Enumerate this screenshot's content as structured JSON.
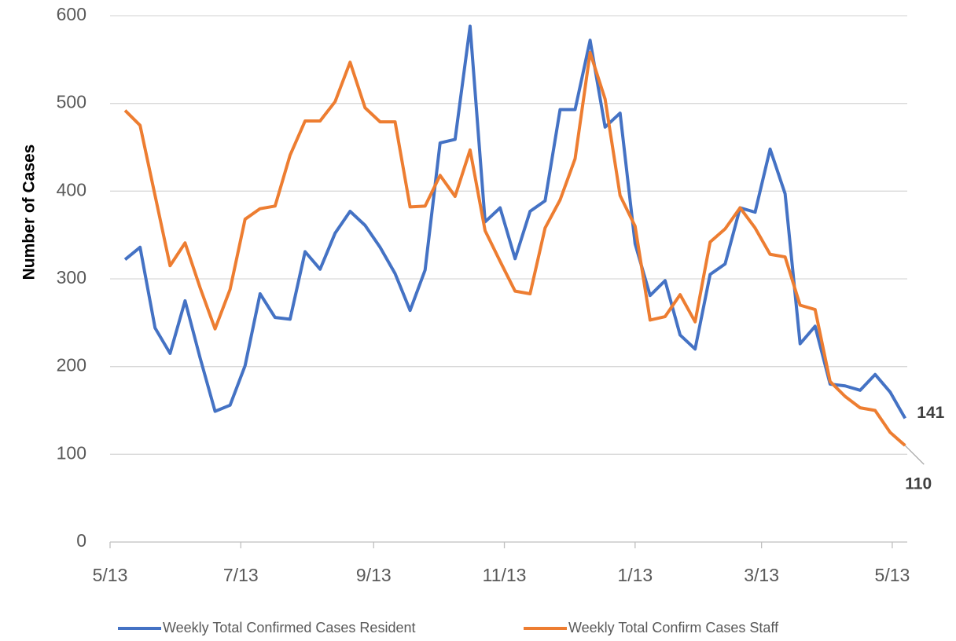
{
  "chart_data": {
    "type": "line",
    "y_axis_label": "Number of Cases",
    "x": [
      7,
      14,
      21,
      28,
      35,
      42,
      49,
      56,
      63,
      70,
      77,
      84,
      91,
      98,
      105,
      112,
      119,
      126,
      133,
      140,
      147,
      154,
      161,
      168,
      175,
      182,
      189,
      196,
      203,
      210,
      217,
      224,
      231,
      238,
      245,
      252,
      259,
      266,
      273,
      280,
      287,
      294,
      301,
      308,
      315,
      322,
      329,
      336,
      343,
      350,
      357,
      364,
      371
    ],
    "series": [
      {
        "name": "Weekly Total Confirmed Cases Resident",
        "color": "#4472c4",
        "values": [
          322,
          336,
          244,
          215,
          275,
          210,
          149,
          156,
          201,
          283,
          256,
          254,
          331,
          311,
          352,
          377,
          361,
          336,
          306,
          264,
          310,
          455,
          459,
          588,
          365,
          381,
          323,
          377,
          389,
          493,
          493,
          572,
          473,
          489,
          340,
          281,
          298,
          236,
          220,
          305,
          317,
          381,
          376,
          448,
          397,
          226,
          246,
          180,
          178,
          173,
          191,
          171,
          141
        ]
      },
      {
        "name": "Weekly Total Confirm Cases Staff",
        "color": "#ed7d31",
        "values": [
          492,
          475,
          395,
          315,
          341,
          290,
          243,
          288,
          368,
          380,
          383,
          441,
          480,
          480,
          502,
          547,
          495,
          479,
          479,
          382,
          383,
          418,
          394,
          447,
          355,
          320,
          286,
          283,
          358,
          390,
          437,
          558,
          505,
          395,
          360,
          253,
          257,
          282,
          251,
          342,
          357,
          381,
          358,
          328,
          325,
          270,
          265,
          183,
          166,
          153,
          150,
          125,
          110
        ]
      }
    ],
    "xlim": [
      0,
      372
    ],
    "xticks": [
      {
        "value": 0,
        "label": "5/13"
      },
      {
        "value": 61,
        "label": "7/13"
      },
      {
        "value": 123,
        "label": "9/13"
      },
      {
        "value": 184,
        "label": "11/13"
      },
      {
        "value": 245,
        "label": "1/13"
      },
      {
        "value": 304,
        "label": "3/13"
      },
      {
        "value": 365,
        "label": "5/13"
      }
    ],
    "ylim": [
      0,
      600
    ],
    "yticks": [
      0,
      100,
      200,
      300,
      400,
      500,
      600
    ],
    "grid": true,
    "legend": "bottom"
  }
}
